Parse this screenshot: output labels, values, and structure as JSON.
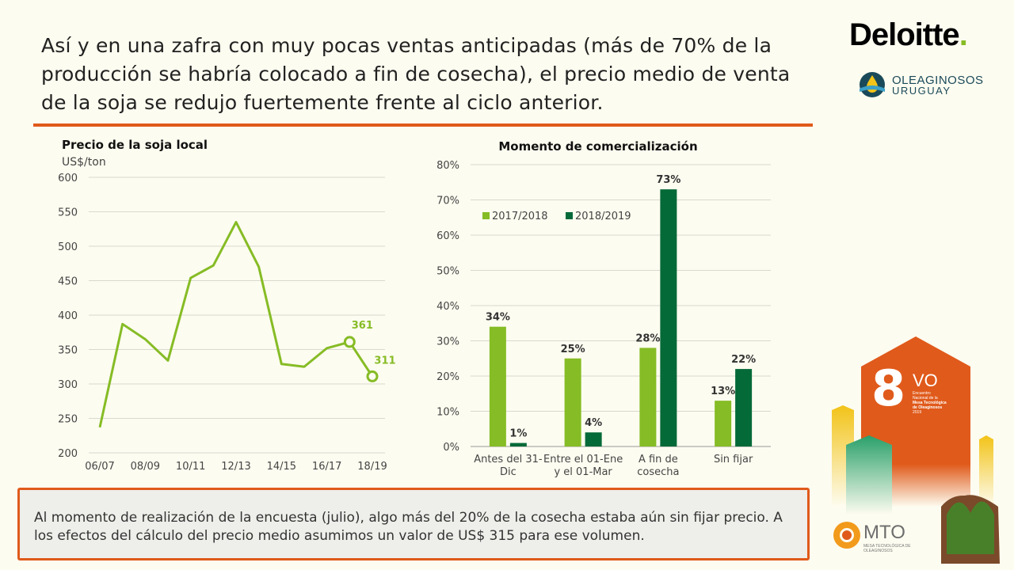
{
  "headline": "Así y en una zafra con muy pocas ventas anticipadas (más de 70% de la producción se habría colocado a fin de cosecha), el precio medio de venta de la soja se redujo fuertemente frente al ciclo anterior.",
  "logos": {
    "deloitte": "Deloitte",
    "deloitte_dot": ".",
    "oleaginosos_1": "OLEAGINOSOS",
    "oleaginosos_2": "URUGUAY",
    "mto": "MTO",
    "mto_sub": "MESA TECNOLÓGICA DE OLEAGINOSOS",
    "badge_number": "8",
    "badge_suffix": "VO",
    "badge_l1": "Encuentro",
    "badge_l2": "Nacional de la",
    "badge_l3": "Mesa Tecnológica",
    "badge_l4": "de Oleaginosos",
    "badge_l5": "2019"
  },
  "note": "Al momento de realización de la encuesta (julio), algo más del 20% de la cosecha estaba aún sin fijar precio. A los efectos del cálculo del precio medio asumimos un valor de US$ 315 para ese volumen.",
  "colors": {
    "accent": "#e05a1b",
    "light_green": "#86bc25",
    "dark_green": "#046a38"
  },
  "chart_data": [
    {
      "type": "line",
      "title": "Precio de la soja local",
      "ylabel": "US$/ton",
      "ylim": [
        200,
        600
      ],
      "yticks": [
        600,
        550,
        500,
        450,
        400,
        350,
        300,
        250,
        200
      ],
      "xtick_labels": [
        "06/07",
        "08/09",
        "10/11",
        "12/13",
        "14/15",
        "16/17",
        "18/19"
      ],
      "x": [
        "06/07",
        "07/08",
        "08/09",
        "09/10",
        "10/11",
        "11/12",
        "12/13",
        "13/14",
        "14/15",
        "15/16",
        "16/17",
        "17/18",
        "18/19"
      ],
      "values": [
        237,
        387,
        365,
        334,
        454,
        472,
        535,
        470,
        329,
        325,
        352,
        361,
        311
      ],
      "highlighted": [
        {
          "x": "17/18",
          "value": 361,
          "label": "361"
        },
        {
          "x": "18/19",
          "value": 311,
          "label": "311"
        }
      ],
      "grid": true
    },
    {
      "type": "bar",
      "title": "Momento de comercialización",
      "categories": [
        [
          "Antes del 31-",
          "Dic"
        ],
        [
          "Entre el 01-Ene",
          "y el 01-Mar"
        ],
        [
          "A fin de",
          "cosecha"
        ],
        [
          "Sin fijar"
        ]
      ],
      "series": [
        {
          "name": "2017/2018",
          "values": [
            34,
            25,
            28,
            13
          ],
          "labels": [
            "34%",
            "25%",
            "28%",
            "13%"
          ],
          "color": "#86bc25"
        },
        {
          "name": "2018/2019",
          "values": [
            1,
            4,
            73,
            22
          ],
          "labels": [
            "1%",
            "4%",
            "73%",
            "22%"
          ],
          "color": "#046a38"
        }
      ],
      "ylim": [
        0,
        80
      ],
      "yticks": [
        "0%",
        "10%",
        "20%",
        "30%",
        "40%",
        "50%",
        "60%",
        "70%",
        "80%"
      ],
      "legend": "top-left",
      "grid": true
    }
  ]
}
